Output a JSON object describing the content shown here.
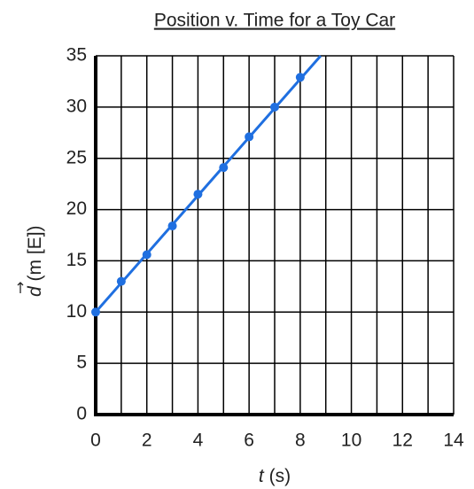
{
  "chart_data": {
    "type": "line",
    "title": "Position v. Time for a Toy Car",
    "xlabel": {
      "symbol": "t",
      "unit": "(s)"
    },
    "ylabel": {
      "symbol": "d",
      "unit": "(m [E])"
    },
    "x": [
      0,
      1,
      2,
      3,
      4,
      5,
      6,
      7,
      8
    ],
    "series": [
      {
        "color": "#1f6fe0",
        "values": [
          10,
          13,
          15.6,
          18.4,
          21.5,
          24.1,
          27.1,
          30,
          32.9
        ]
      }
    ],
    "fit_line": {
      "x": [
        0,
        8.8
      ],
      "y": [
        10,
        35
      ]
    },
    "xlim": [
      0,
      14
    ],
    "ylim": [
      0,
      35
    ],
    "xticks": [
      0,
      2,
      4,
      6,
      8,
      10,
      12,
      14
    ],
    "yticks": [
      0,
      5,
      10,
      15,
      20,
      25,
      30,
      35
    ],
    "xgrid": [
      0,
      1,
      2,
      3,
      4,
      5,
      6,
      7,
      8,
      9,
      10,
      11,
      12,
      13,
      14
    ],
    "grid": true
  }
}
